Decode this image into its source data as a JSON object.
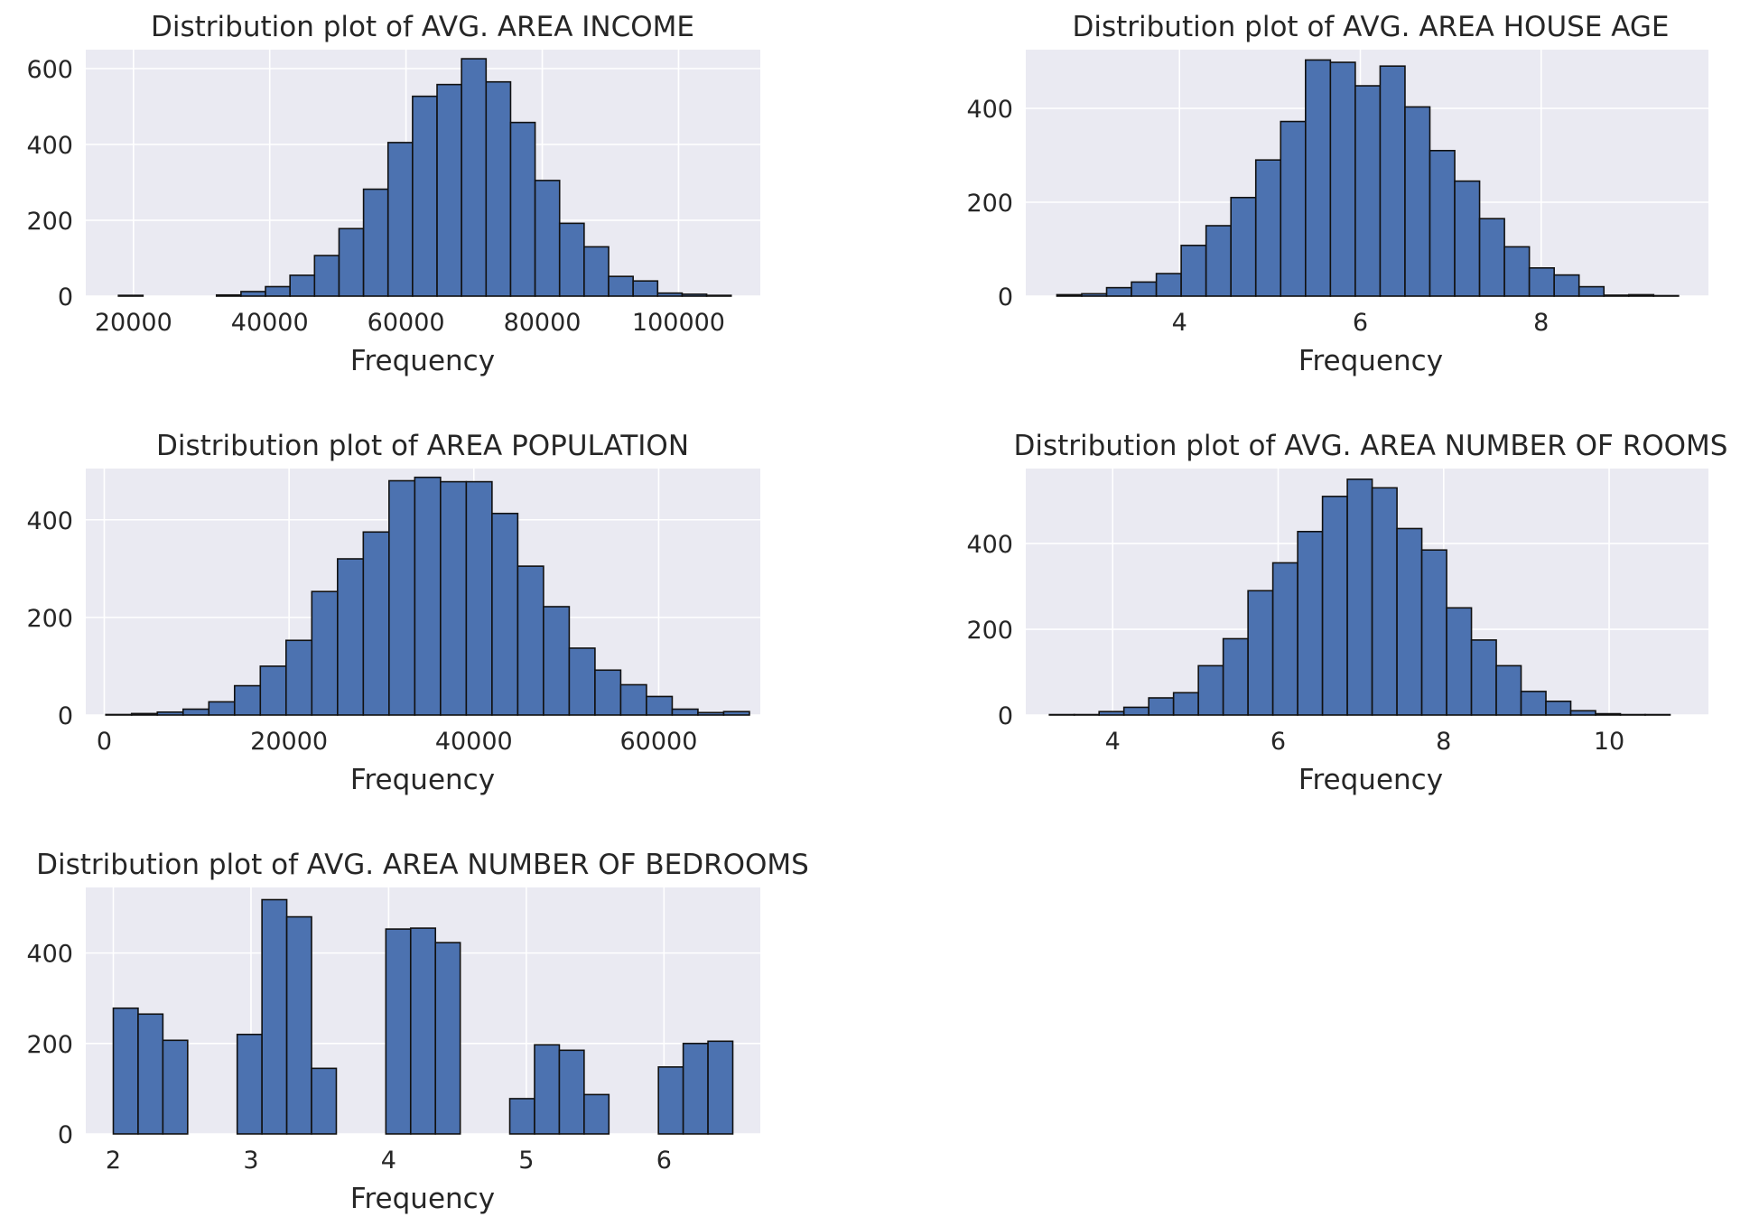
{
  "chart_data": [
    {
      "type": "bar",
      "title": "Distribution plot of AVG. AREA INCOME",
      "xlabel": "Frequency",
      "ylabel": "",
      "xlim": [
        13000,
        112000
      ],
      "ylim": [
        0,
        650
      ],
      "xticks": [
        20000,
        40000,
        60000,
        80000,
        100000
      ],
      "yticks": [
        0,
        200,
        400,
        600
      ],
      "bin_start": 17797,
      "bin_width": 3597,
      "values": [
        2,
        0,
        0,
        0,
        3,
        12,
        25,
        55,
        107,
        178,
        282,
        405,
        527,
        558,
        626,
        565,
        458,
        305,
        192,
        130,
        52,
        40,
        8,
        5,
        2
      ],
      "grid": true,
      "style": {
        "bar_color": "#4c72b0",
        "edge_color": "#111111",
        "background": "#eaeaf2"
      }
    },
    {
      "type": "bar",
      "title": "Distribution plot of AVG. AREA HOUSE AGE",
      "xlabel": "Frequency",
      "ylabel": "",
      "xlim": [
        2.3,
        9.85
      ],
      "ylim": [
        0,
        525
      ],
      "xticks": [
        4,
        6,
        8
      ],
      "yticks": [
        0,
        200,
        400
      ],
      "bin_start": 2.644,
      "bin_width": 0.275,
      "values": [
        3,
        5,
        18,
        30,
        48,
        108,
        150,
        210,
        290,
        372,
        503,
        498,
        448,
        490,
        403,
        310,
        245,
        165,
        105,
        60,
        45,
        20,
        2,
        3,
        1
      ],
      "grid": true,
      "style": {
        "bar_color": "#4c72b0",
        "edge_color": "#111111",
        "background": "#eaeaf2"
      }
    },
    {
      "type": "bar",
      "title": "Distribution plot of AREA POPULATION",
      "xlabel": "Frequency",
      "ylabel": "",
      "xlim": [
        -2000,
        71000
      ],
      "ylim": [
        0,
        505
      ],
      "xticks": [
        0,
        20000,
        40000,
        60000
      ],
      "yticks": [
        0,
        200,
        400
      ],
      "bin_start": 173,
      "bin_width": 2786,
      "values": [
        1,
        3,
        6,
        12,
        27,
        60,
        100,
        153,
        253,
        320,
        375,
        480,
        487,
        478,
        478,
        413,
        305,
        222,
        137,
        92,
        62,
        38,
        12,
        5,
        7
      ],
      "grid": true,
      "style": {
        "bar_color": "#4c72b0",
        "edge_color": "#111111",
        "background": "#eaeaf2"
      }
    },
    {
      "type": "bar",
      "title": "Distribution plot of AVG. AREA NUMBER OF ROOMS",
      "xlabel": "Frequency",
      "ylabel": "",
      "xlim": [
        2.95,
        11.2
      ],
      "ylim": [
        0,
        575
      ],
      "xticks": [
        4,
        6,
        8,
        10
      ],
      "yticks": [
        0,
        200,
        400
      ],
      "bin_start": 3.236,
      "bin_width": 0.3,
      "values": [
        1,
        1,
        8,
        18,
        40,
        52,
        115,
        178,
        290,
        355,
        428,
        510,
        550,
        530,
        435,
        385,
        250,
        175,
        115,
        55,
        32,
        10,
        3,
        1,
        1
      ],
      "grid": true,
      "style": {
        "bar_color": "#4c72b0",
        "edge_color": "#111111",
        "background": "#eaeaf2"
      }
    },
    {
      "type": "bar",
      "title": "Distribution plot of AVG. AREA NUMBER OF BEDROOMS",
      "xlabel": "Frequency",
      "ylabel": "",
      "xlim": [
        1.8,
        6.7
      ],
      "ylim": [
        0,
        545
      ],
      "xticks": [
        2,
        3,
        4,
        5,
        6
      ],
      "yticks": [
        0,
        200,
        400
      ],
      "bin_start": 2.0,
      "bin_width": 0.18,
      "values": [
        278,
        265,
        207,
        0,
        0,
        220,
        518,
        480,
        145,
        0,
        0,
        453,
        455,
        423,
        0,
        0,
        78,
        197,
        185,
        87,
        0,
        0,
        148,
        200,
        205
      ],
      "grid": true,
      "style": {
        "bar_color": "#4c72b0",
        "edge_color": "#111111",
        "background": "#eaeaf2"
      }
    }
  ]
}
